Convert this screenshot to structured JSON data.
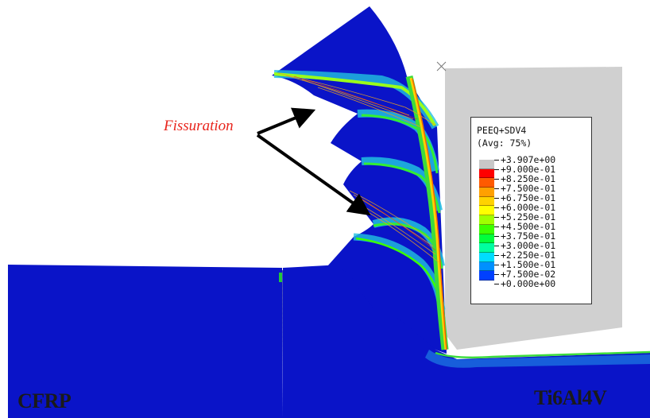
{
  "annotation": {
    "label": "Fissuration",
    "color": "#e8241c"
  },
  "materials": {
    "left": "CFRP",
    "right": "Ti6Al4V"
  },
  "legend": {
    "title": "PEEQ+SDV4",
    "subtitle": "(Avg: 75%)",
    "values": [
      "+3.907e+00",
      "+9.000e-01",
      "+8.250e-01",
      "+7.500e-01",
      "+6.750e-01",
      "+6.000e-01",
      "+5.250e-01",
      "+4.500e-01",
      "+3.750e-01",
      "+3.000e-01",
      "+2.250e-01",
      "+1.500e-01",
      "+7.500e-02",
      "+0.000e+00"
    ],
    "colors": [
      "#c8c8c8",
      "#ff0000",
      "#ff5a00",
      "#ffa000",
      "#ffd200",
      "#ffff00",
      "#a0ff00",
      "#3cff00",
      "#00ff3c",
      "#00ffa0",
      "#00ddff",
      "#0090ff",
      "#0040ff",
      "#0000ff"
    ]
  },
  "palette": {
    "mesh_blue": "#0a14c8",
    "tool_gray": "#d0d0d0",
    "arrow": "#000000"
  }
}
